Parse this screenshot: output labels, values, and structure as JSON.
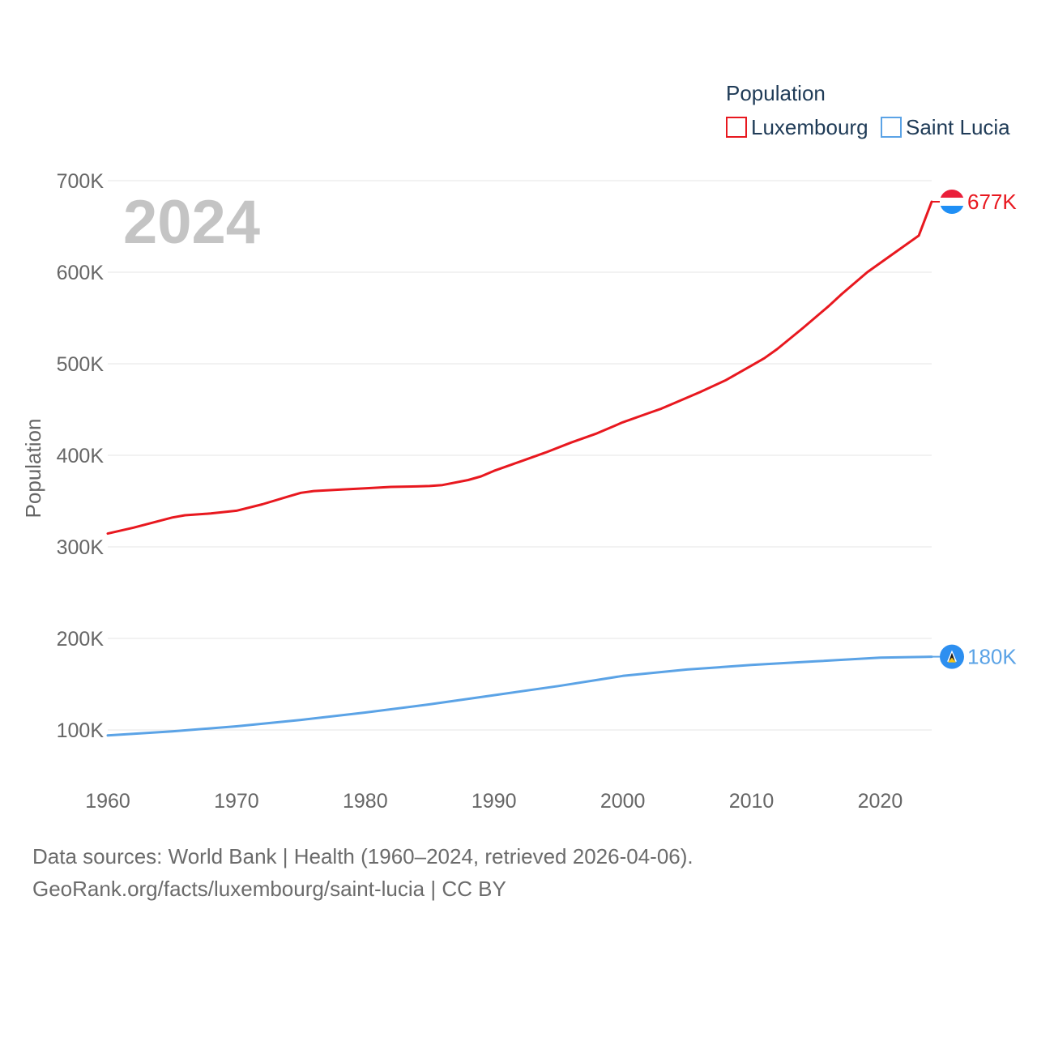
{
  "chart_data": {
    "type": "line",
    "year_label": "2024",
    "legend_title": "Population",
    "ylabel": "Population",
    "xlabel": "",
    "xlim": [
      1960,
      2024
    ],
    "ylim": [
      50000,
      720000
    ],
    "x_ticks": [
      1960,
      1970,
      1980,
      1990,
      2000,
      2010,
      2020
    ],
    "x_tick_labels": [
      "1960",
      "1970",
      "1980",
      "1990",
      "2000",
      "2010",
      "2020"
    ],
    "y_ticks": [
      100000,
      200000,
      300000,
      400000,
      500000,
      600000,
      700000
    ],
    "y_tick_labels": [
      "100K",
      "200K",
      "300K",
      "400K",
      "500K",
      "600K",
      "700K"
    ],
    "grid": true,
    "legend_position": "top-right",
    "series": [
      {
        "name": "Luxembourg",
        "color": "#e8181f",
        "end_label": "677K",
        "marker_icon": "luxembourg-flag-icon",
        "x": [
          1960,
          1962,
          1965,
          1966,
          1968,
          1970,
          1972,
          1974,
          1975,
          1976,
          1978,
          1980,
          1982,
          1984,
          1985,
          1986,
          1988,
          1989,
          1990,
          1992,
          1994,
          1996,
          1998,
          2000,
          2002,
          2003,
          2004,
          2006,
          2008,
          2010,
          2011,
          2012,
          2014,
          2016,
          2017,
          2019,
          2021,
          2023,
          2024
        ],
        "values": [
          314500,
          321000,
          332000,
          334500,
          336500,
          339500,
          346500,
          355000,
          359000,
          361000,
          362500,
          364000,
          365500,
          366000,
          366500,
          367500,
          373000,
          377000,
          383000,
          393000,
          403000,
          414000,
          424000,
          436000,
          446000,
          451000,
          457000,
          469000,
          482000,
          498000,
          506000,
          516000,
          539000,
          563000,
          576000,
          600000,
          620000,
          640000,
          677000
        ]
      },
      {
        "name": "Saint Lucia",
        "color": "#5ba3e6",
        "end_label": "180K",
        "marker_icon": "saint-lucia-flag-icon",
        "x": [
          1960,
          1965,
          1970,
          1975,
          1980,
          1985,
          1990,
          1995,
          2000,
          2005,
          2010,
          2015,
          2020,
          2024
        ],
        "values": [
          94000,
          98500,
          104000,
          111000,
          119000,
          128000,
          138000,
          148000,
          159000,
          166000,
          171000,
          175000,
          179000,
          180000
        ]
      }
    ]
  },
  "footer": {
    "line1": "Data sources: World Bank | Health (1960–2024, retrieved 2026-04-06).",
    "line2": "GeoRank.org/facts/luxembourg/saint-lucia | CC BY"
  }
}
